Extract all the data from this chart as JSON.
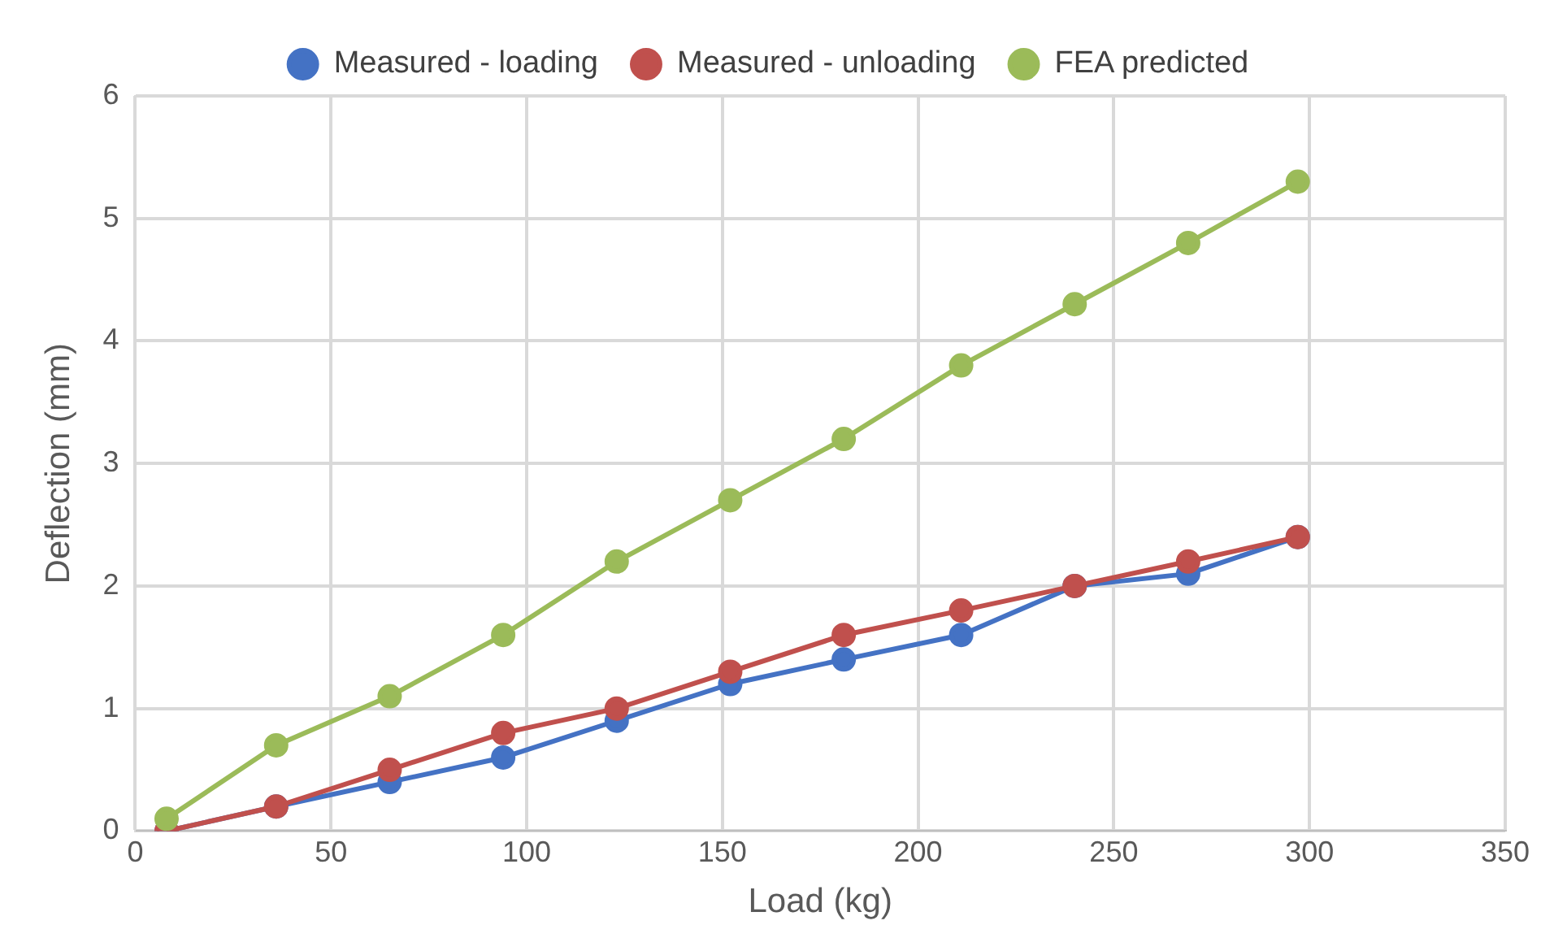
{
  "chart_data": {
    "type": "line",
    "xlabel": "Load (kg)",
    "ylabel": "Deflection (mm)",
    "x": [
      8,
      36,
      65,
      94,
      123,
      152,
      181,
      211,
      240,
      269,
      297
    ],
    "series": [
      {
        "name": "Measured - loading",
        "color": "#4472c4",
        "values": [
          0,
          0.2,
          0.4,
          0.6,
          0.9,
          1.2,
          1.4,
          1.6,
          2.0,
          2.1,
          2.4
        ]
      },
      {
        "name": "Measured - unloading",
        "color": "#c0504d",
        "values": [
          0,
          0.2,
          0.5,
          0.8,
          1.0,
          1.3,
          1.6,
          1.8,
          2.0,
          2.2,
          2.4
        ]
      },
      {
        "name": "FEA predicted",
        "color": "#9bbb59",
        "values": [
          0.1,
          0.7,
          1.1,
          1.6,
          2.2,
          2.7,
          3.2,
          3.8,
          4.3,
          4.8,
          5.3
        ]
      }
    ],
    "xlim": [
      0,
      350
    ],
    "xticks": [
      0,
      50,
      100,
      150,
      200,
      250,
      300,
      350
    ],
    "ylim": [
      0,
      6
    ],
    "yticks": [
      0,
      1,
      2,
      3,
      4,
      5,
      6
    ],
    "grid": true,
    "legend": "top",
    "marker": "circle",
    "line_style": "solid"
  }
}
